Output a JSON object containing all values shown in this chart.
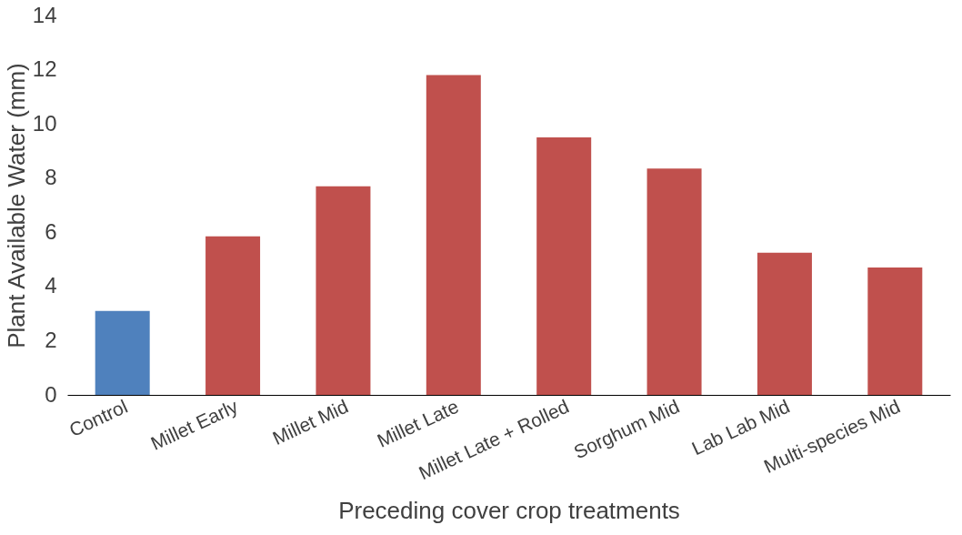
{
  "chart_data": {
    "type": "bar",
    "xlabel": "Preceding cover crop treatments",
    "ylabel": "Plant Available Water  (mm)",
    "categories": [
      "Control",
      "Millet Early",
      "Millet Mid",
      "Millet Late",
      "Millet Late + Rolled",
      "Sorghum Mid",
      "Lab Lab Mid",
      "Multi-species Mid"
    ],
    "values": [
      3.1,
      5.85,
      7.7,
      11.8,
      9.5,
      8.35,
      5.25,
      4.7
    ],
    "colors": [
      "#4f81bd",
      "#c0504d",
      "#c0504d",
      "#c0504d",
      "#c0504d",
      "#c0504d",
      "#c0504d",
      "#c0504d"
    ],
    "ylim": [
      0,
      14
    ],
    "yticks": [
      0,
      2,
      4,
      6,
      8,
      10,
      12,
      14
    ],
    "grid": false
  }
}
